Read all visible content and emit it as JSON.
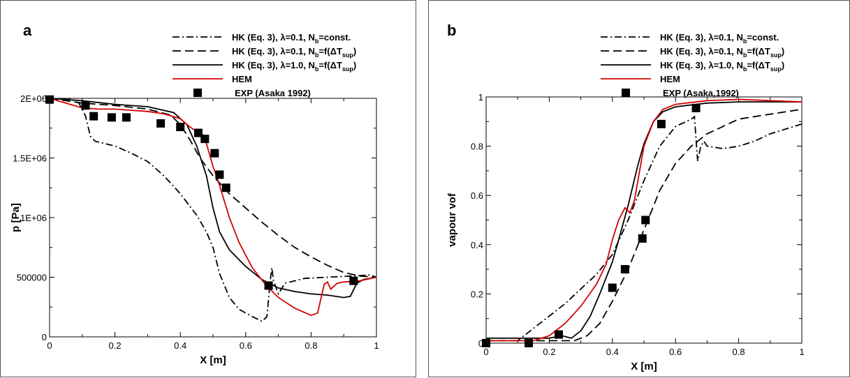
{
  "chart_data": [
    {
      "type": "line",
      "panel": "a",
      "xlabel": "X [m]",
      "ylabel": "p [Pa]",
      "xlim": [
        0,
        1
      ],
      "ylim": [
        0,
        2000000
      ],
      "x_ticks": [
        0,
        0.2,
        0.4,
        0.6,
        0.8,
        1
      ],
      "x_tick_labels": [
        "0",
        "0.2",
        "0.4",
        "0.6",
        "0.8",
        "1"
      ],
      "y_ticks": [
        0,
        500000,
        1000000,
        1500000,
        2000000
      ],
      "y_tick_labels": [
        "0",
        "500000",
        "1E+06",
        "1.5E+06",
        "2E+06"
      ],
      "grid": false,
      "legend_position": "top-right",
      "series": [
        {
          "name": "HK (Eq. 3), λ=0.1, N_b=const.",
          "color": "#000000",
          "style": "dashdot",
          "points": [
            [
              0,
              2000000
            ],
            [
              0.06,
              2000000
            ],
            [
              0.09,
              1960000
            ],
            [
              0.11,
              1850000
            ],
            [
              0.125,
              1680000
            ],
            [
              0.14,
              1640000
            ],
            [
              0.2,
              1600000
            ],
            [
              0.25,
              1540000
            ],
            [
              0.3,
              1470000
            ],
            [
              0.35,
              1350000
            ],
            [
              0.4,
              1200000
            ],
            [
              0.45,
              1020000
            ],
            [
              0.48,
              880000
            ],
            [
              0.5,
              750000
            ],
            [
              0.52,
              530000
            ],
            [
              0.55,
              330000
            ],
            [
              0.58,
              230000
            ],
            [
              0.62,
              170000
            ],
            [
              0.65,
              130000
            ],
            [
              0.665,
              170000
            ],
            [
              0.675,
              470000
            ],
            [
              0.68,
              580000
            ],
            [
              0.685,
              470000
            ],
            [
              0.7,
              360000
            ],
            [
              0.72,
              450000
            ],
            [
              0.78,
              490000
            ],
            [
              0.85,
              500000
            ],
            [
              0.92,
              510000
            ],
            [
              0.96,
              515000
            ],
            [
              0.98,
              520000
            ],
            [
              1,
              500000
            ]
          ]
        },
        {
          "name": "HK (Eq. 3), λ=0.1, N_b=f(ΔT_sup)",
          "color": "#000000",
          "style": "dashed",
          "points": [
            [
              0,
              2000000
            ],
            [
              0.1,
              1960000
            ],
            [
              0.2,
              1940000
            ],
            [
              0.3,
              1910000
            ],
            [
              0.37,
              1860000
            ],
            [
              0.4,
              1780000
            ],
            [
              0.43,
              1650000
            ],
            [
              0.46,
              1500000
            ],
            [
              0.5,
              1350000
            ],
            [
              0.55,
              1200000
            ],
            [
              0.6,
              1080000
            ],
            [
              0.65,
              960000
            ],
            [
              0.7,
              850000
            ],
            [
              0.75,
              750000
            ],
            [
              0.8,
              670000
            ],
            [
              0.85,
              600000
            ],
            [
              0.9,
              540000
            ],
            [
              0.95,
              510000
            ],
            [
              1,
              500000
            ]
          ]
        },
        {
          "name": "HK (Eq. 3), λ=1.0, N_b=f(ΔT_sup)",
          "color": "#000000",
          "style": "solid",
          "points": [
            [
              0,
              2000000
            ],
            [
              0.1,
              1980000
            ],
            [
              0.2,
              1950000
            ],
            [
              0.3,
              1930000
            ],
            [
              0.38,
              1880000
            ],
            [
              0.42,
              1780000
            ],
            [
              0.45,
              1600000
            ],
            [
              0.48,
              1350000
            ],
            [
              0.5,
              1080000
            ],
            [
              0.52,
              880000
            ],
            [
              0.55,
              730000
            ],
            [
              0.6,
              590000
            ],
            [
              0.65,
              480000
            ],
            [
              0.7,
              410000
            ],
            [
              0.75,
              380000
            ],
            [
              0.8,
              360000
            ],
            [
              0.85,
              350000
            ],
            [
              0.9,
              330000
            ],
            [
              0.92,
              340000
            ],
            [
              0.94,
              450000
            ],
            [
              0.96,
              480000
            ],
            [
              1,
              500000
            ]
          ]
        },
        {
          "name": "HEM",
          "color": "#d40000",
          "style": "solid",
          "points": [
            [
              0,
              2000000
            ],
            [
              0.1,
              1920000
            ],
            [
              0.15,
              1910000
            ],
            [
              0.2,
              1910000
            ],
            [
              0.25,
              1900000
            ],
            [
              0.3,
              1890000
            ],
            [
              0.35,
              1870000
            ],
            [
              0.4,
              1830000
            ],
            [
              0.42,
              1780000
            ],
            [
              0.44,
              1740000
            ],
            [
              0.46,
              1740000
            ],
            [
              0.48,
              1620000
            ],
            [
              0.5,
              1430000
            ],
            [
              0.52,
              1270000
            ],
            [
              0.55,
              1000000
            ],
            [
              0.58,
              790000
            ],
            [
              0.62,
              580000
            ],
            [
              0.66,
              440000
            ],
            [
              0.7,
              330000
            ],
            [
              0.75,
              240000
            ],
            [
              0.8,
              180000
            ],
            [
              0.82,
              200000
            ],
            [
              0.84,
              440000
            ],
            [
              0.85,
              460000
            ],
            [
              0.86,
              400000
            ],
            [
              0.88,
              450000
            ],
            [
              0.9,
              460000
            ],
            [
              0.95,
              470000
            ],
            [
              1,
              500000
            ]
          ]
        },
        {
          "name": "EXP (Asaka 1992)",
          "color": "#000000",
          "style": "markers",
          "points": [
            [
              0,
              1990000
            ],
            [
              0.11,
              1940000
            ],
            [
              0.135,
              1850000
            ],
            [
              0.19,
              1840000
            ],
            [
              0.235,
              1840000
            ],
            [
              0.34,
              1790000
            ],
            [
              0.4,
              1760000
            ],
            [
              0.455,
              1710000
            ],
            [
              0.475,
              1660000
            ],
            [
              0.505,
              1540000
            ],
            [
              0.52,
              1360000
            ],
            [
              0.54,
              1250000
            ],
            [
              0.67,
              430000
            ],
            [
              0.93,
              470000
            ]
          ]
        }
      ],
      "legend_entries": [
        {
          "text": "HK (Eq. 3),  λ=0.1, N",
          "sub": "b",
          "tail": "=const."
        },
        {
          "text": "HK (Eq. 3),  λ=0.1, N",
          "sub": "b",
          "tail": "=f(ΔT",
          "sub2": "sup",
          "tail2": ")"
        },
        {
          "text": "HK (Eq. 3),  λ=1.0, N",
          "sub": "b",
          "tail": "=f(ΔT",
          "sub2": "sup",
          "tail2": ")"
        },
        {
          "text": "HEM"
        },
        {
          "text": "EXP (Asaka 1992)"
        }
      ],
      "panel_label": "a"
    },
    {
      "type": "line",
      "panel": "b",
      "xlabel": "X [m]",
      "ylabel": "vapour vof",
      "xlim": [
        0,
        1
      ],
      "ylim": [
        0,
        1
      ],
      "x_ticks": [
        0,
        0.2,
        0.4,
        0.6,
        0.8,
        1
      ],
      "x_tick_labels": [
        "0",
        "0.2",
        "0.4",
        "0.6",
        "0.8",
        "1"
      ],
      "y_ticks": [
        0,
        0.2,
        0.4,
        0.6,
        0.8,
        1
      ],
      "y_tick_labels": [
        "0",
        "0.2",
        "0.4",
        "0.6",
        "0.8",
        "1"
      ],
      "grid": false,
      "legend_position": "top-right",
      "series": [
        {
          "name": "HK (Eq. 3), λ=0.1, N_b=const.",
          "color": "#000000",
          "style": "dashdot",
          "points": [
            [
              0,
              0.01
            ],
            [
              0.1,
              0.01
            ],
            [
              0.13,
              0.04
            ],
            [
              0.2,
              0.11
            ],
            [
              0.25,
              0.16
            ],
            [
              0.3,
              0.22
            ],
            [
              0.35,
              0.28
            ],
            [
              0.4,
              0.36
            ],
            [
              0.45,
              0.5
            ],
            [
              0.5,
              0.66
            ],
            [
              0.55,
              0.8
            ],
            [
              0.6,
              0.88
            ],
            [
              0.65,
              0.91
            ],
            [
              0.66,
              0.92
            ],
            [
              0.67,
              0.74
            ],
            [
              0.68,
              0.8
            ],
            [
              0.69,
              0.82
            ],
            [
              0.7,
              0.8
            ],
            [
              0.75,
              0.79
            ],
            [
              0.8,
              0.8
            ],
            [
              0.85,
              0.82
            ],
            [
              0.9,
              0.85
            ],
            [
              0.95,
              0.87
            ],
            [
              1,
              0.89
            ]
          ]
        },
        {
          "name": "HK (Eq. 3), λ=0.1, N_b=f(ΔT_sup)",
          "color": "#000000",
          "style": "dashed",
          "points": [
            [
              0,
              0.01
            ],
            [
              0.28,
              0.01
            ],
            [
              0.32,
              0.03
            ],
            [
              0.36,
              0.08
            ],
            [
              0.4,
              0.17
            ],
            [
              0.45,
              0.3
            ],
            [
              0.5,
              0.46
            ],
            [
              0.55,
              0.62
            ],
            [
              0.6,
              0.73
            ],
            [
              0.65,
              0.8
            ],
            [
              0.7,
              0.85
            ],
            [
              0.75,
              0.88
            ],
            [
              0.8,
              0.91
            ],
            [
              0.85,
              0.92
            ],
            [
              0.9,
              0.93
            ],
            [
              0.95,
              0.94
            ],
            [
              1,
              0.95
            ]
          ]
        },
        {
          "name": "HK (Eq. 3), λ=1.0, N_b=f(ΔT_sup)",
          "color": "#000000",
          "style": "solid",
          "points": [
            [
              0,
              0.02
            ],
            [
              0.1,
              0.02
            ],
            [
              0.2,
              0.02
            ],
            [
              0.24,
              0.03
            ],
            [
              0.27,
              0.02
            ],
            [
              0.3,
              0.05
            ],
            [
              0.33,
              0.11
            ],
            [
              0.36,
              0.2
            ],
            [
              0.4,
              0.33
            ],
            [
              0.42,
              0.42
            ],
            [
              0.45,
              0.56
            ],
            [
              0.48,
              0.72
            ],
            [
              0.5,
              0.81
            ],
            [
              0.53,
              0.9
            ],
            [
              0.56,
              0.94
            ],
            [
              0.6,
              0.96
            ],
            [
              0.7,
              0.975
            ],
            [
              0.8,
              0.98
            ],
            [
              0.9,
              0.98
            ],
            [
              1,
              0.98
            ]
          ]
        },
        {
          "name": "HEM",
          "color": "#d40000",
          "style": "solid",
          "points": [
            [
              0,
              0.01
            ],
            [
              0.15,
              0.01
            ],
            [
              0.2,
              0.03
            ],
            [
              0.25,
              0.08
            ],
            [
              0.3,
              0.15
            ],
            [
              0.35,
              0.24
            ],
            [
              0.38,
              0.32
            ],
            [
              0.4,
              0.42
            ],
            [
              0.42,
              0.5
            ],
            [
              0.44,
              0.55
            ],
            [
              0.455,
              0.53
            ],
            [
              0.47,
              0.58
            ],
            [
              0.5,
              0.8
            ],
            [
              0.53,
              0.9
            ],
            [
              0.56,
              0.95
            ],
            [
              0.6,
              0.97
            ],
            [
              0.7,
              0.985
            ],
            [
              0.8,
              0.99
            ],
            [
              0.9,
              0.985
            ],
            [
              1,
              0.98
            ]
          ]
        },
        {
          "name": "EXP (Asaka, 1992)",
          "color": "#000000",
          "style": "markers",
          "points": [
            [
              0,
              0.0
            ],
            [
              0.135,
              0.0
            ],
            [
              0.23,
              0.035
            ],
            [
              0.4,
              0.225
            ],
            [
              0.44,
              0.3
            ],
            [
              0.495,
              0.425
            ],
            [
              0.505,
              0.5
            ],
            [
              0.555,
              0.89
            ],
            [
              0.665,
              0.955
            ]
          ]
        }
      ],
      "legend_entries": [
        {
          "text": "HK (Eq. 3),  λ=0.1, N",
          "sub": "b",
          "tail": "=const."
        },
        {
          "text": "HK (Eq. 3),  λ=0.1, N",
          "sub": "b",
          "tail": "=f(ΔT",
          "sub2": "sup",
          "tail2": ")"
        },
        {
          "text": "HK (Eq. 3),  λ=1.0, N",
          "sub": "b",
          "tail": "=f(ΔT",
          "sub2": "sup",
          "tail2": ")"
        },
        {
          "text": "HEM"
        },
        {
          "text": "EXP (Asaka,1992)"
        }
      ],
      "panel_label": "b"
    }
  ]
}
